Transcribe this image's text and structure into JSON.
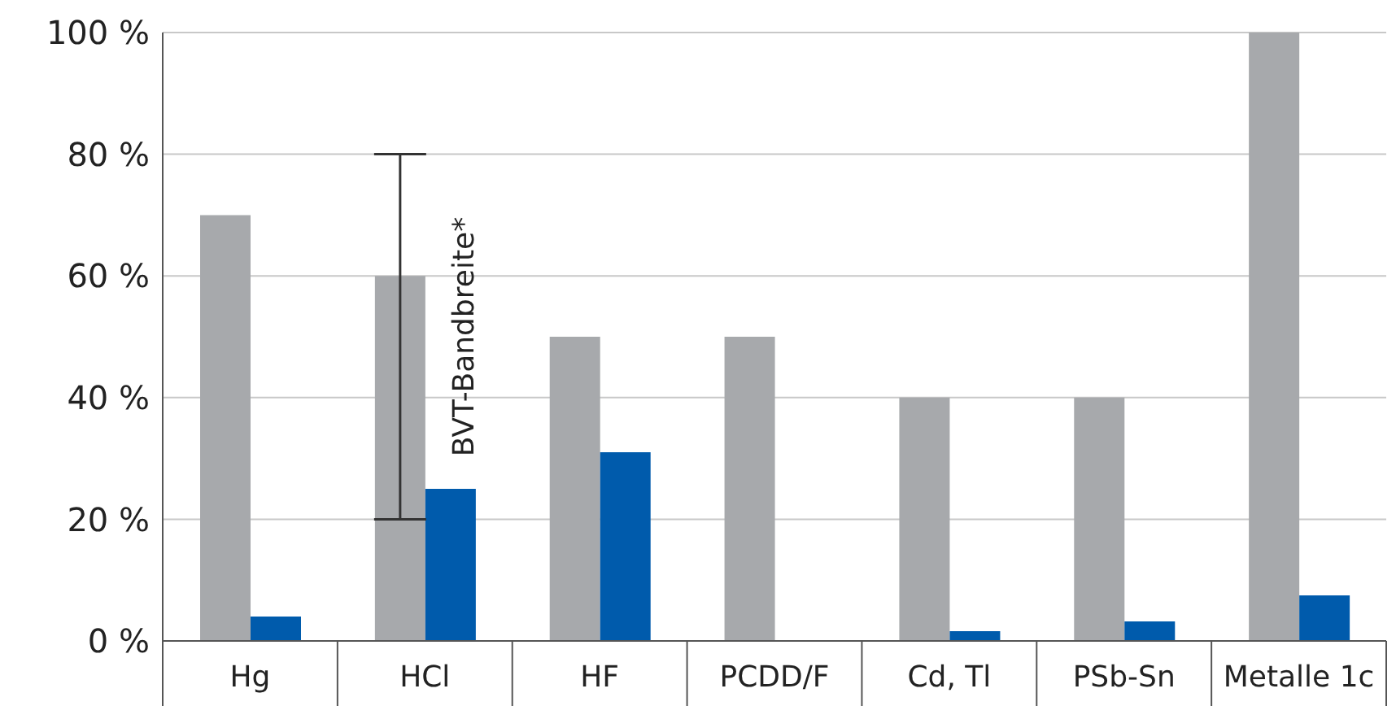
{
  "chart_data": {
    "type": "bar",
    "categories": [
      "Hg",
      "HCl",
      "HF",
      "PCDD/F",
      "Cd, Tl",
      "PSb-Sn",
      "Metalle 1c"
    ],
    "series": [
      {
        "color": "#a7a9ac",
        "values": [
          70,
          60,
          50,
          50,
          40,
          40,
          100
        ],
        "errors": [
          null,
          [
            20,
            80
          ],
          null,
          null,
          null,
          null,
          null
        ]
      },
      {
        "color": "#005bac",
        "values": [
          4,
          25,
          31,
          null,
          1.6,
          3.2,
          7.5
        ]
      }
    ],
    "ylim": [
      0,
      100
    ],
    "yticks": [
      {
        "value": 0,
        "label": "0 %"
      },
      {
        "value": 20,
        "label": "20 %"
      },
      {
        "value": 40,
        "label": "40 %"
      },
      {
        "value": 60,
        "label": "60 %"
      },
      {
        "value": 80,
        "label": "80 %"
      },
      {
        "value": 100,
        "label": "100 %"
      }
    ],
    "grid": "y",
    "legend": false,
    "annotations": [
      {
        "text": "BVT-Bandbreite*",
        "x": "HCl",
        "y": 50
      }
    ]
  }
}
